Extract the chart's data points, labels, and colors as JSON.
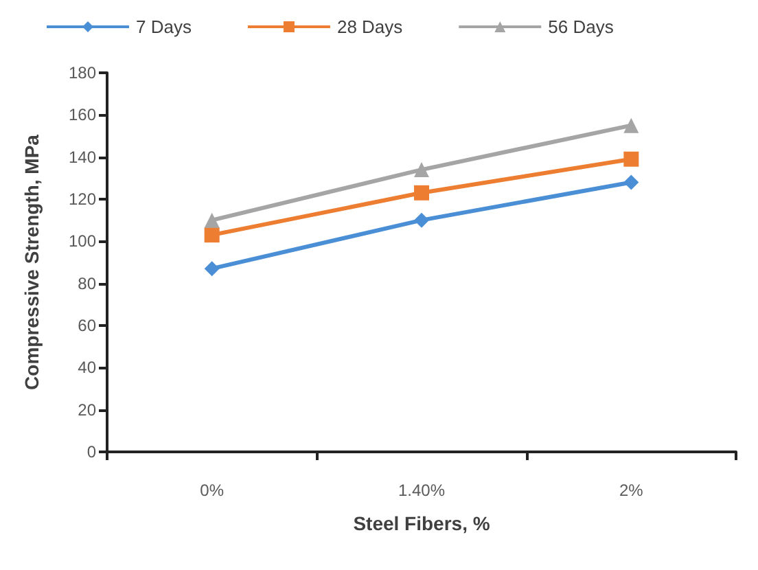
{
  "chart_data": {
    "type": "line",
    "xlabel": "Steel Fibers, %",
    "ylabel": "Compressive Strength, MPa",
    "categories": [
      "0%",
      "1.40%",
      "2%"
    ],
    "series": [
      {
        "name": "7 Days",
        "color": "#4a8fd6",
        "marker": "diamond",
        "values": [
          87,
          110,
          128
        ]
      },
      {
        "name": "28 Days",
        "color": "#ed7d31",
        "marker": "square",
        "values": [
          103,
          123,
          139
        ]
      },
      {
        "name": "56 Days",
        "color": "#a5a5a5",
        "marker": "triangle",
        "values": [
          110,
          134,
          155
        ]
      }
    ],
    "ylim": [
      0,
      180
    ],
    "yticks": [
      0,
      20,
      40,
      60,
      80,
      100,
      120,
      140,
      160,
      180
    ],
    "grid": false,
    "legend": "top"
  }
}
